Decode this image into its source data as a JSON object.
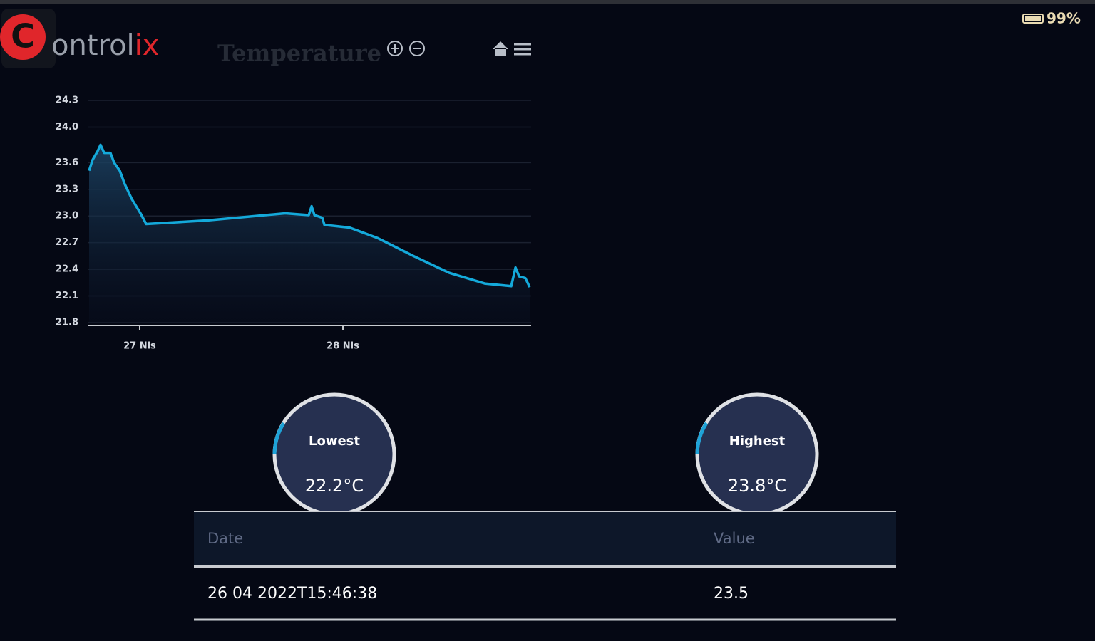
{
  "status": {
    "battery": "99%"
  },
  "logo": {
    "letter": "C",
    "text": "ontrol",
    "accent": "ix"
  },
  "header": {
    "title": "Temperature"
  },
  "chart_data": {
    "type": "area",
    "x": [
      26.751,
      26.768,
      26.793,
      26.807,
      26.825,
      26.856,
      26.874,
      26.902,
      26.926,
      26.961,
      27.004,
      27.032,
      27.33,
      27.716,
      27.832,
      27.846,
      27.86,
      27.898,
      27.909,
      28.032,
      28.172,
      28.347,
      28.523,
      28.698,
      28.828,
      28.849,
      28.867,
      28.898,
      28.919
    ],
    "values": [
      23.51,
      23.63,
      23.73,
      23.8,
      23.71,
      23.71,
      23.6,
      23.51,
      23.36,
      23.19,
      23.03,
      22.91,
      22.95,
      23.03,
      23.01,
      23.11,
      23.01,
      22.98,
      22.9,
      22.87,
      22.75,
      22.55,
      22.36,
      22.24,
      22.21,
      22.42,
      22.32,
      22.3,
      22.2
    ],
    "color": "#14a9da",
    "xlim": [
      26.744,
      28.926
    ],
    "xticks": [
      {
        "value": 27,
        "label": "27 Nis"
      },
      {
        "value": 28,
        "label": "28 Nis"
      }
    ],
    "ylim": [
      21.8,
      24.3
    ],
    "yticks": [
      21.8,
      22.1,
      22.4,
      22.7,
      {
        "value": 23.0,
        "label": "23.0"
      },
      23.3,
      23.6,
      {
        "value": 24.0,
        "label": "24.0"
      },
      24.3
    ],
    "grid": true
  },
  "gauges": [
    {
      "label": "Lowest",
      "value": "22.2°C"
    },
    {
      "label": "Highest",
      "value": "23.8°C"
    }
  ],
  "table": {
    "headers": [
      "Date",
      "Value"
    ],
    "rows": [
      [
        "26 04 2022T15:46:38",
        23.5
      ]
    ]
  }
}
